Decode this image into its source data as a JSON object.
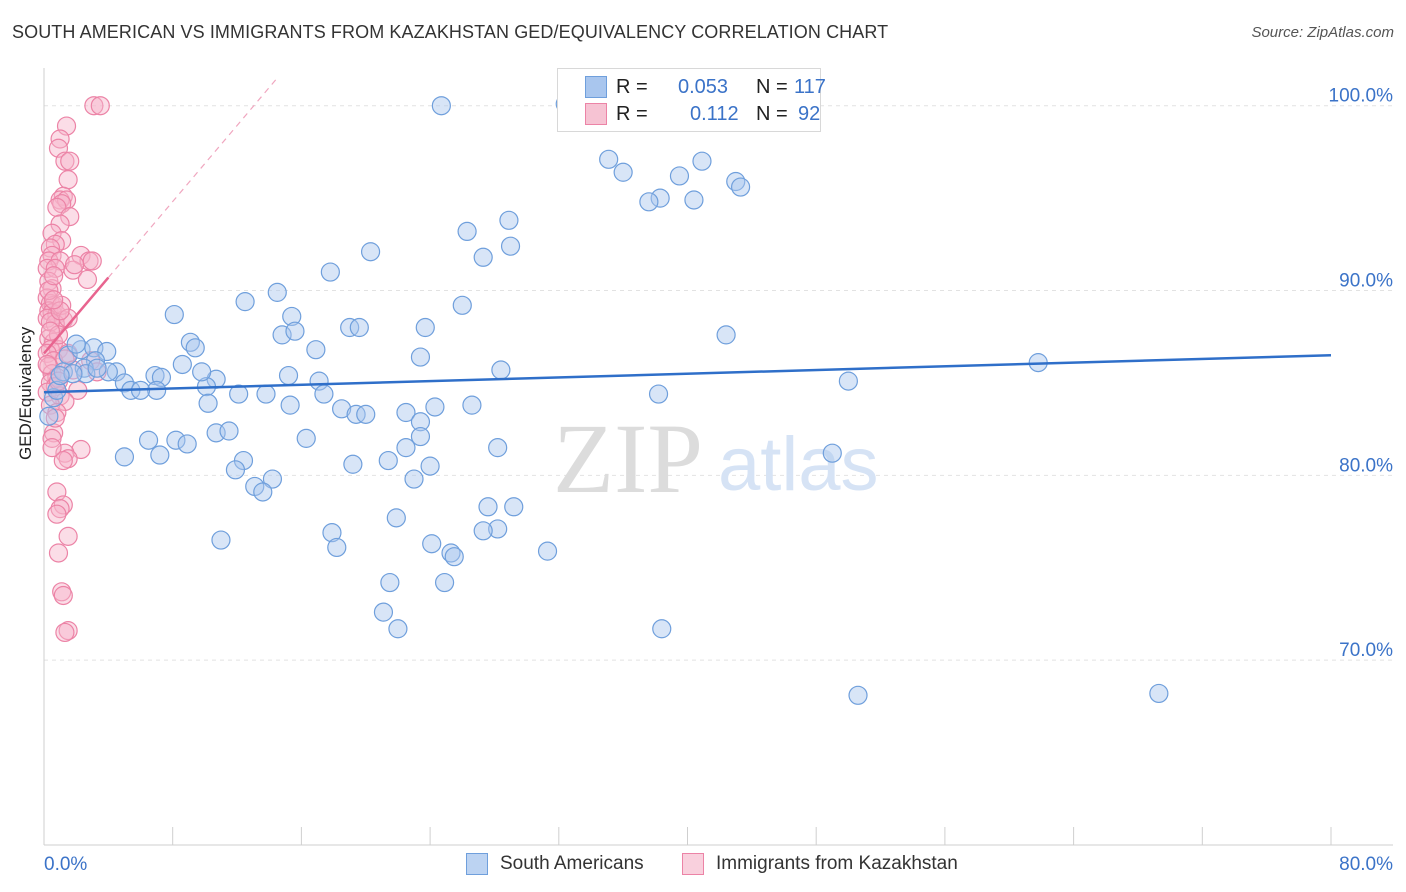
{
  "title": "SOUTH AMERICAN VS IMMIGRANTS FROM KAZAKHSTAN GED/EQUIVALENCY CORRELATION CHART",
  "source": "Source: ZipAtlas.com",
  "watermark": {
    "zip": "ZIP",
    "atlas": "atlas"
  },
  "legend": {
    "south_american": {
      "r_label": "R =",
      "r_value": "0.053",
      "n_label": "N =",
      "n_value": "117"
    },
    "kazakhstan": {
      "r_label": "R =",
      "r_value": "0.112",
      "n_label": "N =",
      "n_value": "92"
    }
  },
  "colors": {
    "blue_fill": "#a9c6ee",
    "blue_stroke": "#6f9fdc",
    "blue_line": "#2f6fc9",
    "pink_fill": "#f6b4c9",
    "pink_stroke": "#ec83a6",
    "pink_line": "#e8648f",
    "axis_text": "#3b73c8"
  },
  "chart_data": {
    "type": "scatter",
    "title": "SOUTH AMERICAN VS IMMIGRANTS FROM KAZAKHSTAN GED/EQUIVALENCY CORRELATION CHART",
    "xlabel": "",
    "ylabel": "GED/Equivalency",
    "x_axis": {
      "min": 0,
      "max": 80,
      "tick_labels": {
        "start": "0.0%",
        "end": "80.0%"
      }
    },
    "y_axis": {
      "min": 60,
      "max": 101.5,
      "ticks": [
        70,
        80,
        90,
        100
      ],
      "tick_labels": [
        "70.0%",
        "80.0%",
        "90.0%",
        "100.0%"
      ]
    },
    "grid": true,
    "legend_position": "bottom",
    "series": [
      {
        "name": "South Americans",
        "color": "#a9c6ee",
        "trend": {
          "x0": 0,
          "y0": 84.5,
          "x1": 80,
          "y1": 86.5
        },
        "points": [
          [
            24.7,
            100
          ],
          [
            32.4,
            100.1
          ],
          [
            35.1,
            97.1
          ],
          [
            36.0,
            96.4
          ],
          [
            39.5,
            96.2
          ],
          [
            40.9,
            97.0
          ],
          [
            38.3,
            95.0
          ],
          [
            37.6,
            94.8
          ],
          [
            40.4,
            94.9
          ],
          [
            43.0,
            95.9
          ],
          [
            43.3,
            95.6
          ],
          [
            28.9,
            93.8
          ],
          [
            26.3,
            93.2
          ],
          [
            29.0,
            92.4
          ],
          [
            27.3,
            91.8
          ],
          [
            20.3,
            92.1
          ],
          [
            17.8,
            91.0
          ],
          [
            14.5,
            89.9
          ],
          [
            12.5,
            89.4
          ],
          [
            26.0,
            89.2
          ],
          [
            8.1,
            88.7
          ],
          [
            15.4,
            88.6
          ],
          [
            19.0,
            88.0
          ],
          [
            19.6,
            88.0
          ],
          [
            23.7,
            88.0
          ],
          [
            14.8,
            87.6
          ],
          [
            15.6,
            87.8
          ],
          [
            42.4,
            87.6
          ],
          [
            9.1,
            87.2
          ],
          [
            9.4,
            86.9
          ],
          [
            16.9,
            86.8
          ],
          [
            23.4,
            86.4
          ],
          [
            61.8,
            86.1
          ],
          [
            8.6,
            86.0
          ],
          [
            28.4,
            85.7
          ],
          [
            1.5,
            86.5
          ],
          [
            2.3,
            86.8
          ],
          [
            2.0,
            87.1
          ],
          [
            3.1,
            86.9
          ],
          [
            3.9,
            86.7
          ],
          [
            3.2,
            86.2
          ],
          [
            2.5,
            85.8
          ],
          [
            4.5,
            85.6
          ],
          [
            6.9,
            85.4
          ],
          [
            7.3,
            85.3
          ],
          [
            10.7,
            85.2
          ],
          [
            15.2,
            85.4
          ],
          [
            17.1,
            85.1
          ],
          [
            1.2,
            85.6
          ],
          [
            2.6,
            85.5
          ],
          [
            5.0,
            85.0
          ],
          [
            7.0,
            84.6
          ],
          [
            10.1,
            84.8
          ],
          [
            12.1,
            84.4
          ],
          [
            13.8,
            84.4
          ],
          [
            17.4,
            84.4
          ],
          [
            0.6,
            84.2
          ],
          [
            5.4,
            84.6
          ],
          [
            6.0,
            84.6
          ],
          [
            38.2,
            84.4
          ],
          [
            50.0,
            85.1
          ],
          [
            10.2,
            83.9
          ],
          [
            15.3,
            83.8
          ],
          [
            18.5,
            83.6
          ],
          [
            19.4,
            83.3
          ],
          [
            24.3,
            83.7
          ],
          [
            26.6,
            83.8
          ],
          [
            0.3,
            83.2
          ],
          [
            22.5,
            83.4
          ],
          [
            23.4,
            82.9
          ],
          [
            20.0,
            83.3
          ],
          [
            10.7,
            82.3
          ],
          [
            11.5,
            82.4
          ],
          [
            8.2,
            81.9
          ],
          [
            8.9,
            81.7
          ],
          [
            16.3,
            82.0
          ],
          [
            22.5,
            81.5
          ],
          [
            23.4,
            82.1
          ],
          [
            28.2,
            81.5
          ],
          [
            6.5,
            81.9
          ],
          [
            7.2,
            81.1
          ],
          [
            5.0,
            81.0
          ],
          [
            21.4,
            80.8
          ],
          [
            49.0,
            81.2
          ],
          [
            12.4,
            80.8
          ],
          [
            11.9,
            80.3
          ],
          [
            19.2,
            80.6
          ],
          [
            24.0,
            80.5
          ],
          [
            14.2,
            79.8
          ],
          [
            13.1,
            79.4
          ],
          [
            13.6,
            79.1
          ],
          [
            23.0,
            79.8
          ],
          [
            29.2,
            78.3
          ],
          [
            27.6,
            78.3
          ],
          [
            21.9,
            77.7
          ],
          [
            17.9,
            76.9
          ],
          [
            28.2,
            77.1
          ],
          [
            27.3,
            77.0
          ],
          [
            11.0,
            76.5
          ],
          [
            18.2,
            76.1
          ],
          [
            24.1,
            76.3
          ],
          [
            25.3,
            75.8
          ],
          [
            25.5,
            75.6
          ],
          [
            31.3,
            75.9
          ],
          [
            21.5,
            74.2
          ],
          [
            24.9,
            74.2
          ],
          [
            21.1,
            72.6
          ],
          [
            22.0,
            71.7
          ],
          [
            38.4,
            71.7
          ],
          [
            50.6,
            68.1
          ],
          [
            69.3,
            68.2
          ],
          [
            9.8,
            85.6
          ],
          [
            4.0,
            85.6
          ],
          [
            1.8,
            85.5
          ],
          [
            3.3,
            85.8
          ],
          [
            0.8,
            84.6
          ],
          [
            1.0,
            85.4
          ]
        ]
      },
      {
        "name": "Immigrants from Kazakhstan",
        "color": "#f6b4c9",
        "trend": {
          "x0": 0,
          "y0": 86.6,
          "x1": 4,
          "y1": 90.7
        },
        "trend_extension": {
          "x0": 4,
          "y0": 90.7,
          "x1": 14.5,
          "y1": 101.5
        },
        "points": [
          [
            3.1,
            100
          ],
          [
            3.5,
            100
          ],
          [
            1.4,
            98.9
          ],
          [
            1.0,
            98.2
          ],
          [
            0.9,
            97.7
          ],
          [
            1.3,
            97.0
          ],
          [
            1.6,
            97.0
          ],
          [
            1.5,
            96.0
          ],
          [
            1.2,
            95.1
          ],
          [
            1.0,
            94.9
          ],
          [
            1.4,
            94.9
          ],
          [
            1.1,
            94.7
          ],
          [
            0.8,
            94.5
          ],
          [
            1.6,
            94.0
          ],
          [
            1.0,
            93.6
          ],
          [
            0.5,
            93.1
          ],
          [
            1.1,
            92.7
          ],
          [
            0.7,
            92.5
          ],
          [
            0.4,
            92.3
          ],
          [
            0.5,
            91.9
          ],
          [
            2.3,
            91.9
          ],
          [
            0.3,
            91.6
          ],
          [
            1.0,
            91.6
          ],
          [
            2.8,
            91.6
          ],
          [
            3.0,
            91.6
          ],
          [
            0.2,
            91.2
          ],
          [
            0.7,
            91.2
          ],
          [
            1.8,
            91.1
          ],
          [
            2.7,
            90.6
          ],
          [
            0.3,
            90.5
          ],
          [
            0.5,
            90.1
          ],
          [
            0.2,
            89.6
          ],
          [
            0.4,
            89.3
          ],
          [
            0.6,
            89.2
          ],
          [
            0.3,
            88.9
          ],
          [
            0.5,
            88.8
          ],
          [
            0.8,
            88.7
          ],
          [
            0.2,
            88.5
          ],
          [
            1.2,
            88.4
          ],
          [
            0.7,
            88.2
          ],
          [
            0.3,
            87.4
          ],
          [
            0.6,
            87.2
          ],
          [
            0.4,
            86.8
          ],
          [
            0.9,
            86.8
          ],
          [
            0.2,
            86.6
          ],
          [
            1.5,
            86.6
          ],
          [
            0.6,
            86.2
          ],
          [
            0.3,
            85.9
          ],
          [
            2.9,
            86.2
          ],
          [
            0.5,
            85.5
          ],
          [
            0.8,
            85.3
          ],
          [
            3.3,
            85.6
          ],
          [
            0.4,
            85.0
          ],
          [
            0.7,
            84.8
          ],
          [
            0.2,
            84.5
          ],
          [
            2.1,
            84.6
          ],
          [
            1.0,
            84.3
          ],
          [
            1.3,
            84.0
          ],
          [
            0.4,
            83.8
          ],
          [
            0.8,
            83.4
          ],
          [
            0.6,
            82.3
          ],
          [
            0.5,
            82.0
          ],
          [
            2.3,
            81.4
          ],
          [
            1.3,
            81.2
          ],
          [
            1.5,
            80.9
          ],
          [
            1.2,
            80.8
          ],
          [
            0.8,
            79.1
          ],
          [
            1.2,
            78.4
          ],
          [
            1.0,
            78.2
          ],
          [
            0.8,
            77.9
          ],
          [
            1.5,
            76.7
          ],
          [
            0.9,
            75.8
          ],
          [
            1.1,
            73.7
          ],
          [
            1.2,
            73.5
          ],
          [
            1.5,
            71.6
          ],
          [
            1.3,
            71.5
          ],
          [
            0.4,
            88.3
          ],
          [
            1.1,
            89.2
          ],
          [
            1.5,
            88.5
          ],
          [
            0.9,
            87.6
          ],
          [
            0.3,
            90.0
          ],
          [
            0.6,
            90.8
          ],
          [
            1.9,
            91.4
          ],
          [
            0.2,
            86.0
          ],
          [
            0.9,
            85.1
          ],
          [
            1.3,
            86.3
          ],
          [
            0.7,
            83.1
          ],
          [
            0.5,
            81.5
          ],
          [
            1.8,
            85.7
          ],
          [
            0.4,
            87.8
          ],
          [
            1.0,
            88.9
          ],
          [
            0.6,
            89.5
          ]
        ]
      }
    ]
  }
}
